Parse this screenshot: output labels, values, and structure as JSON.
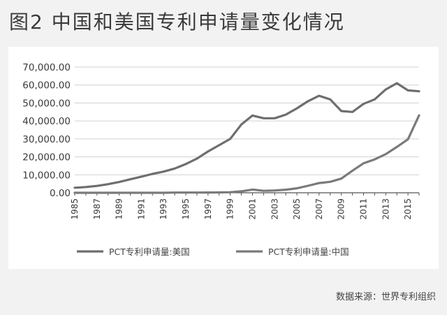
{
  "title": "图2 中国和美国专利申请量变化情况",
  "source": "数据来源：世界专利组织",
  "chart_data": {
    "type": "line",
    "title": "图2 中国和美国专利申请量变化情况",
    "xlabel": "",
    "ylabel": "",
    "ylim": [
      0,
      70000
    ],
    "yticks": [
      "0.00",
      "10,000.00",
      "20,000.00",
      "30,000.00",
      "40,000.00",
      "50,000.00",
      "60,000.00",
      "70,000.00"
    ],
    "ytick_values": [
      0,
      10000,
      20000,
      30000,
      40000,
      50000,
      60000,
      70000
    ],
    "x": [
      1985,
      1986,
      1987,
      1988,
      1989,
      1990,
      1991,
      1992,
      1993,
      1994,
      1995,
      1996,
      1997,
      1998,
      1999,
      2000,
      2001,
      2002,
      2003,
      2004,
      2005,
      2006,
      2007,
      2008,
      2009,
      2010,
      2011,
      2012,
      2013,
      2014,
      2015,
      2016
    ],
    "xticks": [
      "1985",
      "1987",
      "1989",
      "1991",
      "1993",
      "1995",
      "1997",
      "1999",
      "2001",
      "2003",
      "2005",
      "2007",
      "2009",
      "2011",
      "2013",
      "2015"
    ],
    "grid": true,
    "legend": "bottom",
    "series": [
      {
        "name": "PCT专利申请量:美国",
        "color": "#6e6e6e",
        "values": [
          2800,
          3200,
          3800,
          4800,
          6000,
          7500,
          9000,
          10500,
          11800,
          13500,
          16000,
          19000,
          23000,
          26500,
          30000,
          38000,
          43000,
          41500,
          41500,
          43500,
          47000,
          51000,
          54000,
          52000,
          45500,
          45000,
          49500,
          52000,
          57500,
          61000,
          57000,
          56500
        ]
      },
      {
        "name": "PCT专利申请量:中国",
        "color": "#7a7a7a",
        "values": [
          0,
          0,
          0,
          0,
          0,
          0,
          0,
          0,
          0,
          100,
          100,
          100,
          150,
          200,
          300,
          800,
          1800,
          1100,
          1300,
          1700,
          2500,
          3900,
          5400,
          6100,
          7900,
          12300,
          16400,
          18600,
          21500,
          25500,
          29800,
          43100
        ]
      }
    ]
  }
}
